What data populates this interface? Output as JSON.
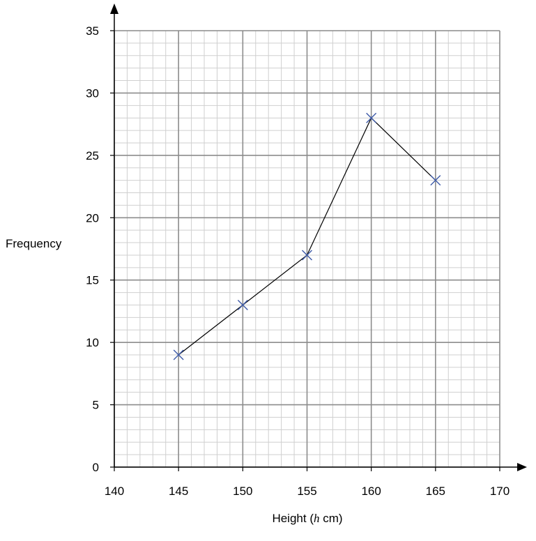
{
  "chart_data": {
    "type": "line",
    "title": "",
    "xlabel_prefix": "Height (",
    "xlabel_var": "h",
    "xlabel_suffix": " cm)",
    "ylabel": "Frequency",
    "xlim": [
      140,
      170
    ],
    "ylim": [
      0,
      35
    ],
    "x_ticks": [
      140,
      145,
      150,
      155,
      160,
      165,
      170
    ],
    "y_ticks": [
      0,
      5,
      10,
      15,
      20,
      25,
      30,
      35
    ],
    "x_minor_step": 1,
    "y_minor_step": 1,
    "grid": true,
    "series": [
      {
        "x": [
          145,
          150,
          155,
          160,
          165
        ],
        "y": [
          9,
          13,
          17,
          28,
          23
        ],
        "marker": "cross",
        "line_color": "#000000",
        "marker_color": "#3d5aa8"
      }
    ]
  }
}
